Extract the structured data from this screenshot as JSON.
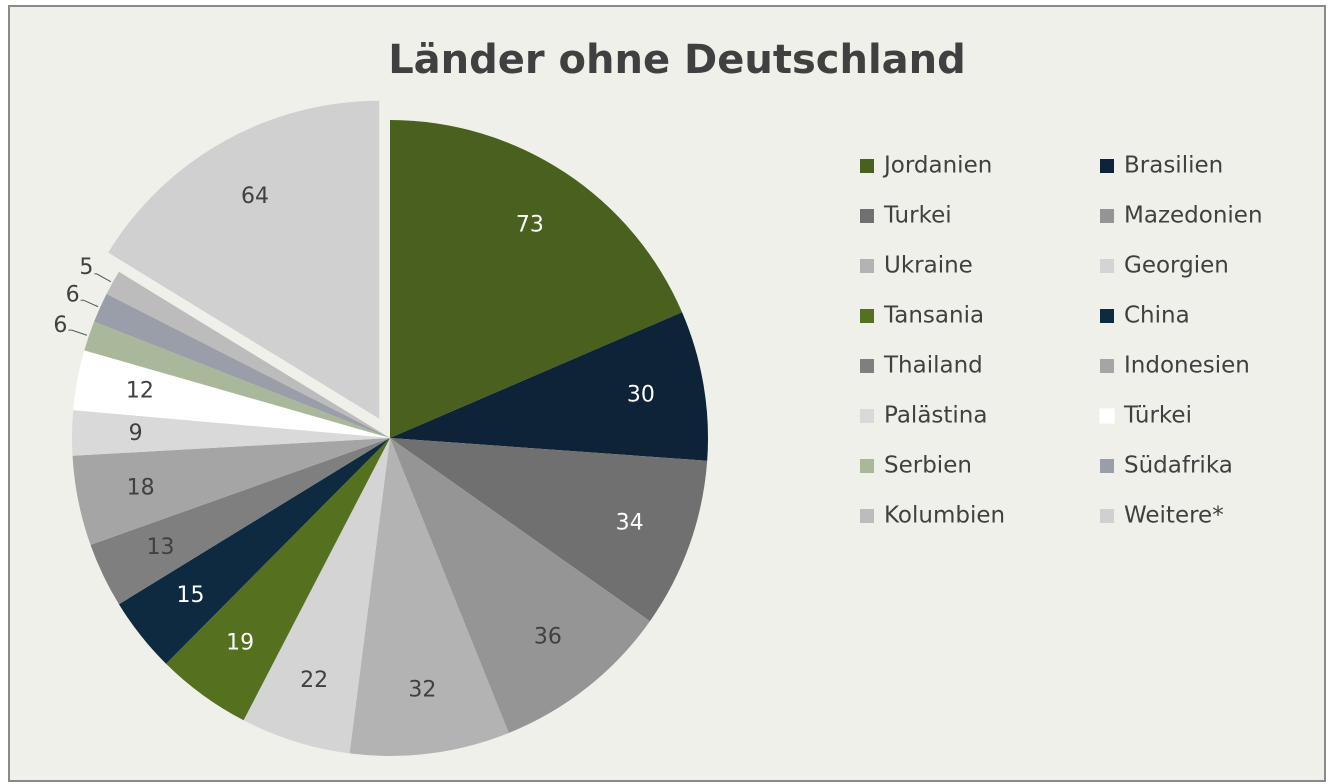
{
  "chart_data": {
    "type": "pie",
    "title": "Länder ohne Deutschland",
    "categories": [
      "Jordanien",
      "Brasilien",
      "Turkei",
      "Mazedonien",
      "Ukraine",
      "Georgien",
      "Tansania",
      "China",
      "Thailand",
      "Indonesien",
      "Palästina",
      "Türkei",
      "Serbien",
      "Südafrika",
      "Kolumbien",
      "Weitere*"
    ],
    "values": [
      73,
      30,
      34,
      36,
      32,
      22,
      19,
      15,
      13,
      18,
      9,
      12,
      6,
      6,
      5,
      64
    ],
    "colors": [
      "#4a601e",
      "#0e2238",
      "#707070",
      "#959595",
      "#b3b3b3",
      "#d4d4d4",
      "#55701f",
      "#0e2a40",
      "#7f7f7f",
      "#a5a5a5",
      "#d9d9d9",
      "#ffffff",
      "#a9b89a",
      "#9a9ea8",
      "#bcbcbc",
      "#d0d0d0"
    ],
    "exploded": [
      15
    ],
    "legend": "right"
  }
}
